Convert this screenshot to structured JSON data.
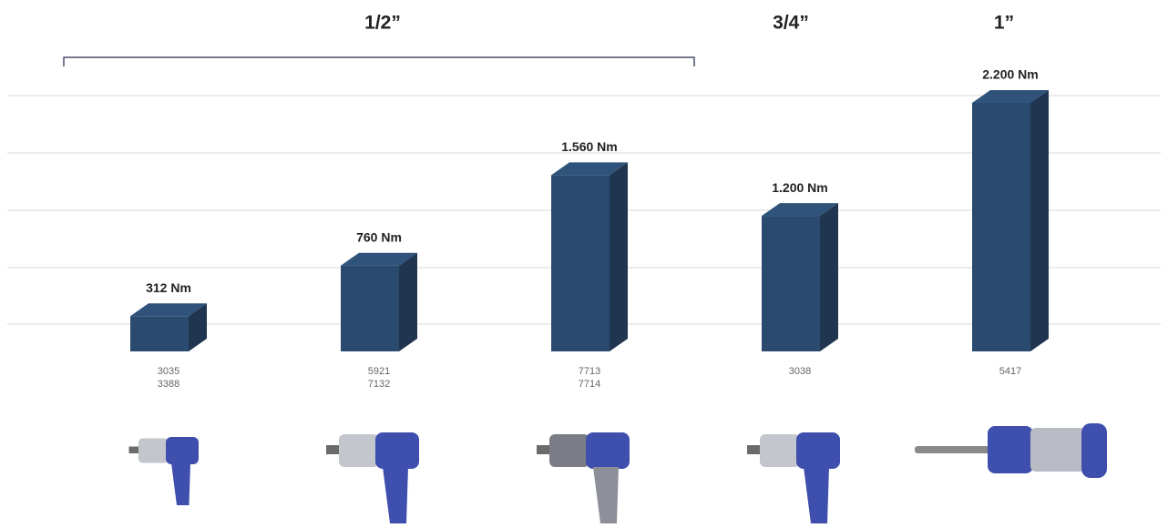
{
  "chart_data": {
    "type": "bar",
    "groups": [
      "1/2”",
      "3/4”",
      "1”"
    ],
    "categories": [
      [
        "3035",
        "3388"
      ],
      [
        "5921",
        "7132"
      ],
      [
        "7713",
        "7714"
      ],
      [
        "3038"
      ],
      [
        "5417"
      ]
    ],
    "values": [
      312,
      760,
      1560,
      1200,
      2200
    ],
    "value_labels": [
      "312 Nm",
      "760 Nm",
      "1.560 Nm",
      "1.200 Nm",
      "2.200 Nm"
    ],
    "color": "#2b4a6f",
    "ylim": [
      0,
      2200
    ]
  }
}
